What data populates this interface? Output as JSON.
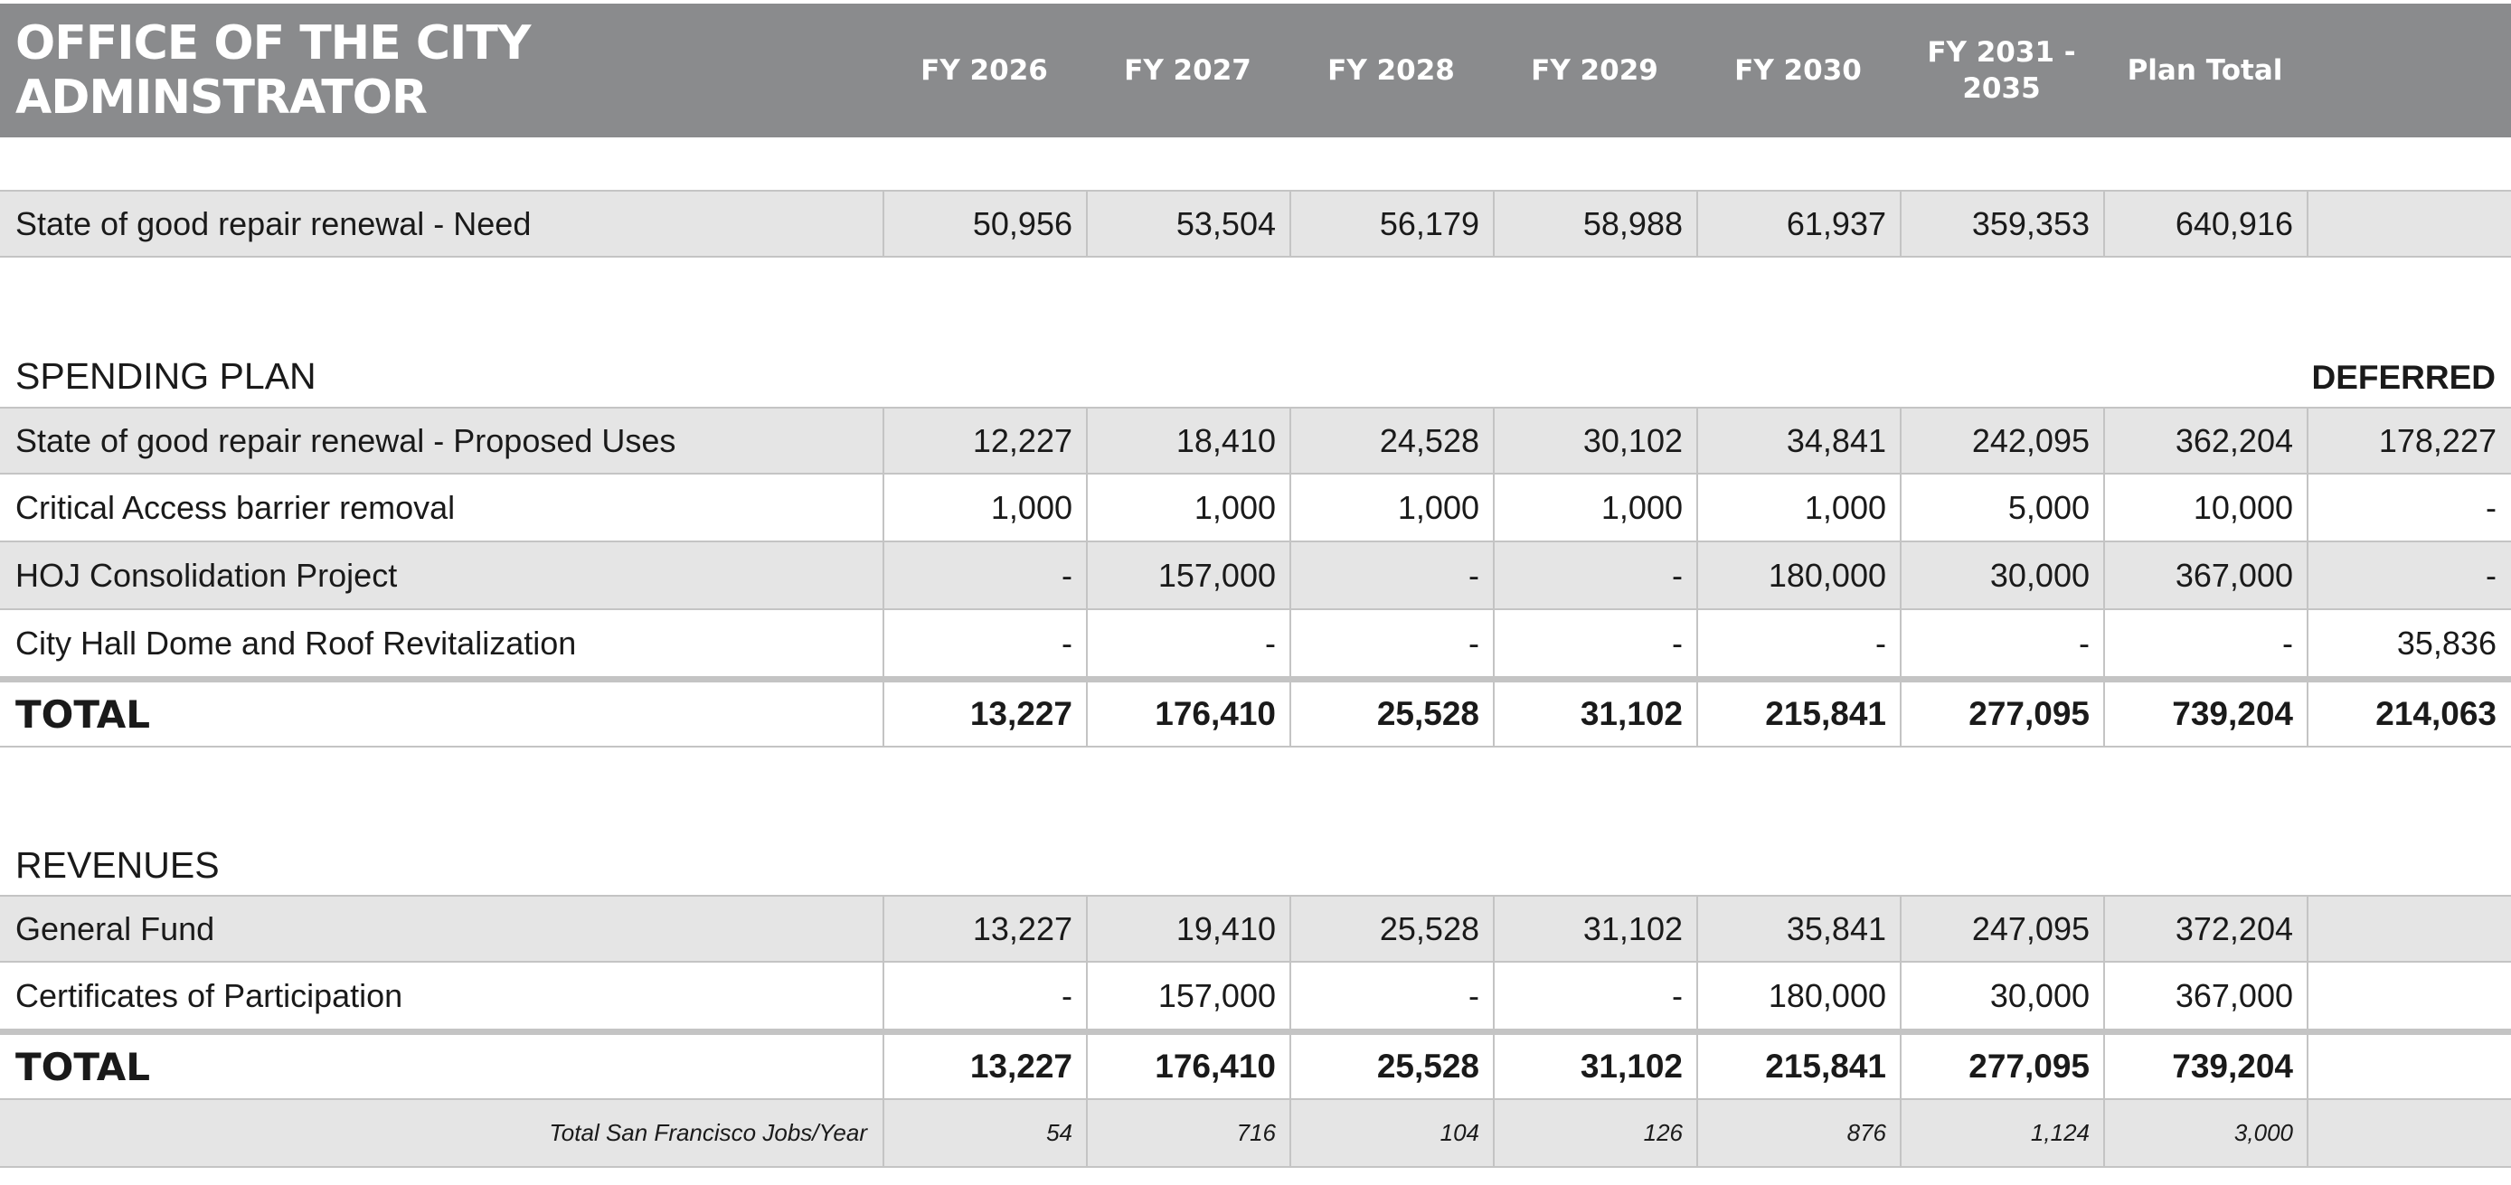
{
  "header": {
    "title": "OFFICE OF THE CITY ADMINSTRATOR",
    "columns": [
      "FY 2026",
      "FY 2027",
      "FY 2028",
      "FY 2029",
      "FY 2030",
      "FY 2031 - 2035",
      "Plan Total",
      ""
    ]
  },
  "need": {
    "label": "State of good repair renewal - Need",
    "values": [
      "50,956",
      "53,504",
      "56,179",
      "58,988",
      "61,937",
      "359,353",
      "640,916",
      ""
    ]
  },
  "spending": {
    "title": "SPENDING PLAN",
    "deferred_label": "DEFERRED",
    "rows": [
      {
        "label": "State of good repair renewal - Proposed Uses",
        "values": [
          "12,227",
          "18,410",
          "24,528",
          "30,102",
          "34,841",
          "242,095",
          "362,204",
          "178,227"
        ]
      },
      {
        "label": "Critical Access barrier removal",
        "values": [
          "1,000",
          "1,000",
          "1,000",
          "1,000",
          "1,000",
          "5,000",
          "10,000",
          "-"
        ]
      },
      {
        "label": "HOJ Consolidation Project",
        "values": [
          "-",
          "157,000",
          "-",
          "-",
          "180,000",
          "30,000",
          "367,000",
          "-"
        ]
      },
      {
        "label": "City Hall Dome and Roof Revitalization",
        "values": [
          "-",
          "-",
          "-",
          "-",
          "-",
          "-",
          "-",
          "35,836"
        ]
      }
    ],
    "total": {
      "label": "TOTAL",
      "values": [
        "13,227",
        "176,410",
        "25,528",
        "31,102",
        "215,841",
        "277,095",
        "739,204",
        "214,063"
      ]
    }
  },
  "revenues": {
    "title": "REVENUES",
    "rows": [
      {
        "label": "General Fund",
        "values": [
          "13,227",
          "19,410",
          "25,528",
          "31,102",
          "35,841",
          "247,095",
          "372,204",
          ""
        ]
      },
      {
        "label": "Certificates of Participation",
        "values": [
          "-",
          "157,000",
          "-",
          "-",
          "180,000",
          "30,000",
          "367,000",
          ""
        ]
      }
    ],
    "total": {
      "label": "TOTAL",
      "values": [
        "13,227",
        "176,410",
        "25,528",
        "31,102",
        "215,841",
        "277,095",
        "739,204",
        ""
      ]
    },
    "jobs": {
      "label": "Total San Francisco Jobs/Year",
      "values": [
        "54",
        "716",
        "104",
        "126",
        "876",
        "1,124",
        "3,000",
        ""
      ]
    }
  }
}
